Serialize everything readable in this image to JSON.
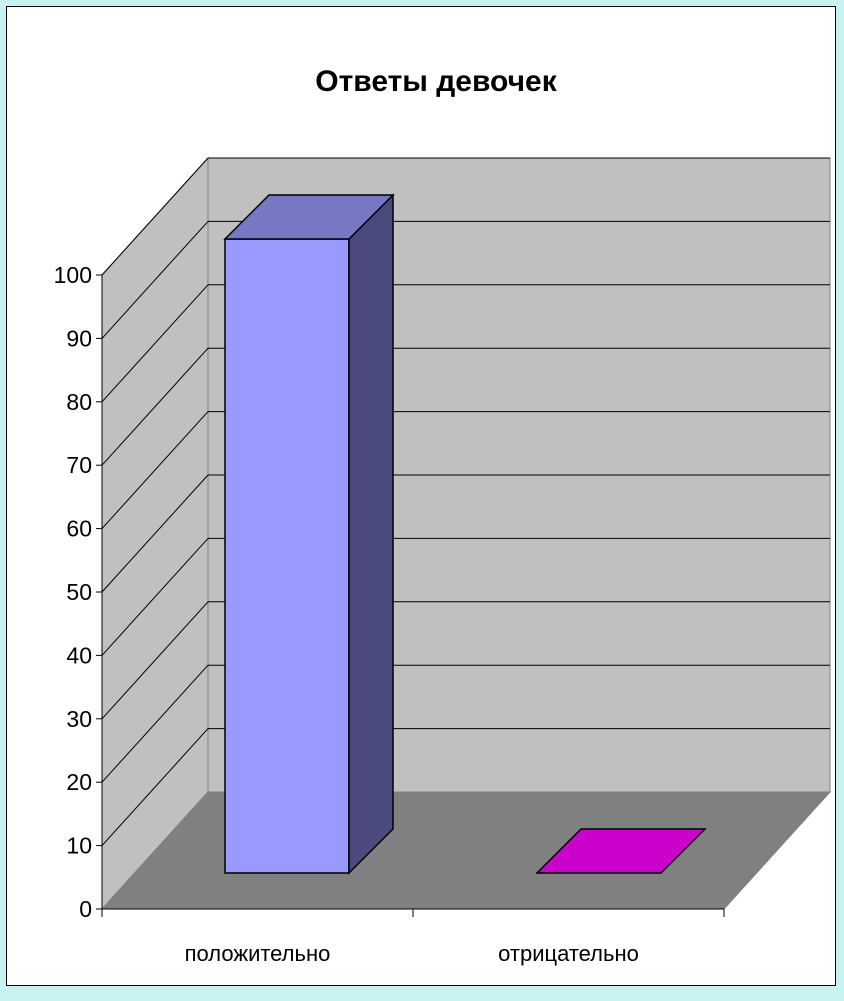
{
  "chart_data": {
    "type": "bar",
    "title": "Ответы девочек",
    "categories": [
      "положительно",
      "отрицательно"
    ],
    "values": [
      100,
      0
    ],
    "ylim": [
      0,
      100
    ],
    "yticks": [
      0,
      10,
      20,
      30,
      40,
      50,
      60,
      70,
      80,
      90,
      100
    ],
    "grid": true,
    "three_d": true,
    "legend": "none",
    "colors": {
      "bars": [
        "#9999ff",
        "#cc00cc"
      ],
      "bar_tops": [
        "#7777c4",
        "#bb00bb"
      ],
      "bar_sides": [
        "#4a4a7c",
        "#660066"
      ],
      "back_wall": "#c0c0c0",
      "side_wall": "#c0c0c0",
      "floor": "#808080",
      "page_background": "#c9f2f2"
    }
  }
}
